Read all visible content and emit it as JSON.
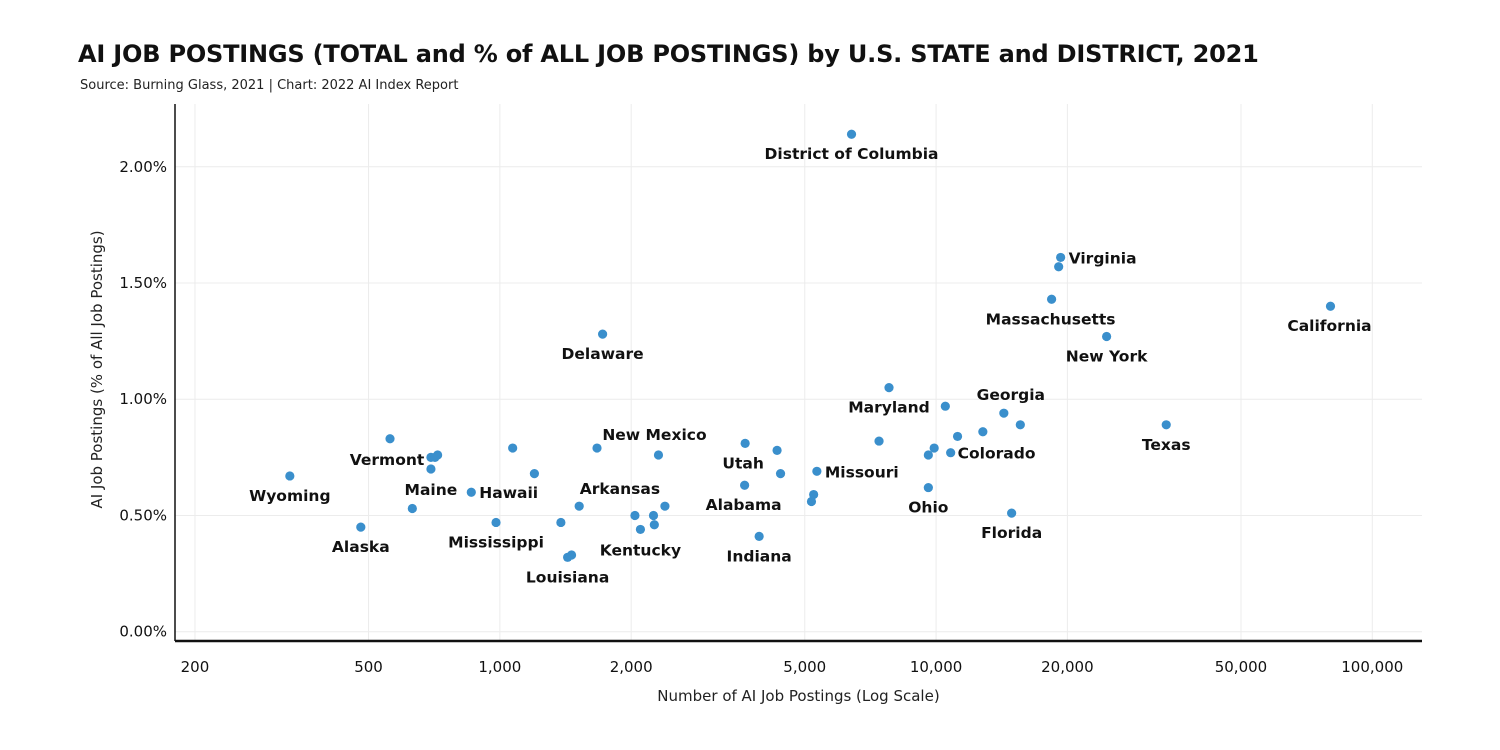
{
  "title": "AI JOB POSTINGS (TOTAL and % of ALL JOB POSTINGS) by U.S. STATE and DISTRICT, 2021",
  "subtitle": "Source: Burning Glass, 2021 | Chart: 2022 AI Index Report",
  "chart_data": {
    "type": "scatter",
    "xscale": "log",
    "xlabel": "Number of AI Job Postings (Log Scale)",
    "ylabel": "AI Job Postings (% of All Job Postings)",
    "xlim": [
      180,
      130000
    ],
    "ylim": [
      -0.04,
      2.27
    ],
    "x_ticks": [
      200,
      500,
      1000,
      2000,
      5000,
      10000,
      20000,
      50000,
      100000
    ],
    "x_tick_labels": [
      "200",
      "500",
      "1,000",
      "2,000",
      "5,000",
      "10,000",
      "20,000",
      "50,000",
      "100,000"
    ],
    "y_ticks": [
      0,
      0.5,
      1.0,
      1.5,
      2.0
    ],
    "y_tick_labels": [
      "0.00%",
      "0.50%",
      "1.00%",
      "1.50%",
      "2.00%"
    ],
    "grid": true,
    "marker_color": "#3a8fcc",
    "points": [
      {
        "label": "District of Columbia",
        "x": 6400,
        "y": 2.14
      },
      {
        "label": "Virginia",
        "x": 19300,
        "y": 1.61
      },
      {
        "label": "",
        "x": 19100,
        "y": 1.57
      },
      {
        "label": "Massachusetts",
        "x": 18400,
        "y": 1.43
      },
      {
        "label": "California",
        "x": 80200,
        "y": 1.4
      },
      {
        "label": "New York",
        "x": 24600,
        "y": 1.27
      },
      {
        "label": "Delaware",
        "x": 1720,
        "y": 1.28
      },
      {
        "label": "Maryland",
        "x": 7800,
        "y": 1.05
      },
      {
        "label": "",
        "x": 10500,
        "y": 0.97
      },
      {
        "label": "Georgia",
        "x": 14300,
        "y": 0.94
      },
      {
        "label": "",
        "x": 15600,
        "y": 0.89
      },
      {
        "label": "Texas",
        "x": 33700,
        "y": 0.89
      },
      {
        "label": "",
        "x": 12800,
        "y": 0.86
      },
      {
        "label": "",
        "x": 11200,
        "y": 0.84
      },
      {
        "label": "",
        "x": 7400,
        "y": 0.82
      },
      {
        "label": "",
        "x": 9900,
        "y": 0.79
      },
      {
        "label": "Colorado",
        "x": 10800,
        "y": 0.77
      },
      {
        "label": "",
        "x": 9600,
        "y": 0.76
      },
      {
        "label": "Ohio",
        "x": 9600,
        "y": 0.62
      },
      {
        "label": "Florida",
        "x": 14900,
        "y": 0.51
      },
      {
        "label": "Missouri",
        "x": 5330,
        "y": 0.69
      },
      {
        "label": "",
        "x": 4320,
        "y": 0.78
      },
      {
        "label": "Utah",
        "x": 3650,
        "y": 0.81
      },
      {
        "label": "",
        "x": 4400,
        "y": 0.68
      },
      {
        "label": "Alabama",
        "x": 3640,
        "y": 0.63
      },
      {
        "label": "",
        "x": 5240,
        "y": 0.59
      },
      {
        "label": "",
        "x": 5180,
        "y": 0.56
      },
      {
        "label": "Indiana",
        "x": 3930,
        "y": 0.41
      },
      {
        "label": "New Mexico",
        "x": 2310,
        "y": 0.76
      },
      {
        "label": "",
        "x": 1670,
        "y": 0.79
      },
      {
        "label": "Arkansas",
        "x": 2390,
        "y": 0.54
      },
      {
        "label": "",
        "x": 2040,
        "y": 0.5
      },
      {
        "label": "",
        "x": 2250,
        "y": 0.5
      },
      {
        "label": "",
        "x": 2260,
        "y": 0.46
      },
      {
        "label": "Kentucky",
        "x": 2100,
        "y": 0.44
      },
      {
        "label": "",
        "x": 1520,
        "y": 0.54
      },
      {
        "label": "",
        "x": 1380,
        "y": 0.47
      },
      {
        "label": "",
        "x": 1460,
        "y": 0.33
      },
      {
        "label": "Louisiana",
        "x": 1430,
        "y": 0.32
      },
      {
        "label": "",
        "x": 1200,
        "y": 0.68
      },
      {
        "label": "",
        "x": 1070,
        "y": 0.79
      },
      {
        "label": "Hawaii",
        "x": 860,
        "y": 0.6
      },
      {
        "label": "Mississippi",
        "x": 980,
        "y": 0.47
      },
      {
        "label": "Vermont",
        "x": 560,
        "y": 0.83
      },
      {
        "label": "",
        "x": 720,
        "y": 0.76
      },
      {
        "label": "",
        "x": 695,
        "y": 0.75
      },
      {
        "label": "",
        "x": 710,
        "y": 0.75
      },
      {
        "label": "Maine",
        "x": 695,
        "y": 0.7
      },
      {
        "label": "",
        "x": 630,
        "y": 0.53
      },
      {
        "label": "Wyoming",
        "x": 330,
        "y": 0.67
      },
      {
        "label": "Alaska",
        "x": 480,
        "y": 0.45
      }
    ]
  }
}
